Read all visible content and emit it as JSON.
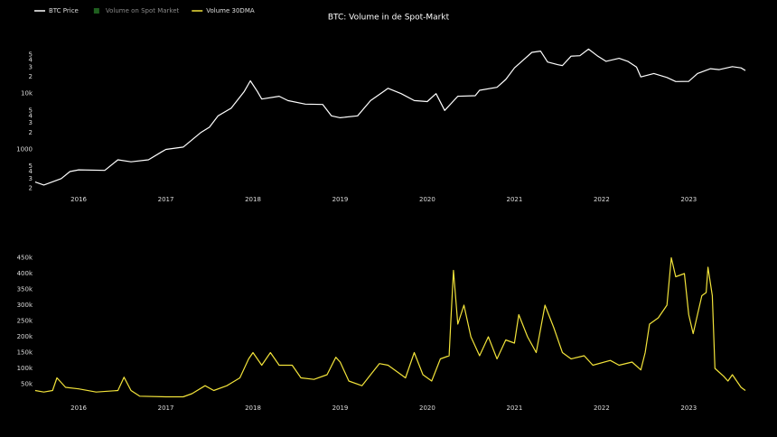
{
  "title": "BTC: Volume in de Spot-Markt",
  "legend": [
    {
      "label": "BTC Price",
      "color": "#ffffff"
    },
    {
      "label": "Volume on Spot Market",
      "color": "#1f5f1f"
    },
    {
      "label": "Volume 30DMA",
      "color": "#f2e33a"
    }
  ],
  "chart_data": [
    {
      "type": "line",
      "log_scale": true,
      "xlim": [
        2015.46,
        2023.66
      ],
      "xticks": [
        2016,
        2017,
        2018,
        2019,
        2020,
        2021,
        2022,
        2023
      ],
      "ylim": [
        190,
        100000
      ],
      "yticks": [
        {
          "value": 200,
          "label": "2"
        },
        {
          "value": 300,
          "label": "3"
        },
        {
          "value": 400,
          "label": "4"
        },
        {
          "value": 500,
          "label": "5"
        },
        1000,
        {
          "value": 2000,
          "label": "2"
        },
        {
          "value": 3000,
          "label": "3"
        },
        {
          "value": 4000,
          "label": "4"
        },
        {
          "value": 5000,
          "label": "5"
        },
        {
          "value": 10000,
          "label": "10k"
        },
        {
          "value": 20000,
          "label": "2"
        },
        {
          "value": 30000,
          "label": "3"
        },
        {
          "value": 40000,
          "label": "4"
        },
        {
          "value": 50000,
          "label": "5"
        }
      ],
      "x": [
        2015.5,
        2015.6,
        2015.8,
        2015.9,
        2016.0,
        2016.3,
        2016.45,
        2016.6,
        2016.8,
        2016.95,
        2017.0,
        2017.2,
        2017.4,
        2017.5,
        2017.6,
        2017.75,
        2017.9,
        2017.97,
        2018.05,
        2018.1,
        2018.3,
        2018.4,
        2018.6,
        2018.8,
        2018.9,
        2019.0,
        2019.2,
        2019.35,
        2019.5,
        2019.55,
        2019.7,
        2019.85,
        2020.0,
        2020.1,
        2020.2,
        2020.35,
        2020.55,
        2020.6,
        2020.8,
        2020.9,
        2021.0,
        2021.1,
        2021.2,
        2021.3,
        2021.38,
        2021.5,
        2021.55,
        2021.65,
        2021.75,
        2021.85,
        2021.95,
        2022.05,
        2022.2,
        2022.3,
        2022.4,
        2022.45,
        2022.6,
        2022.75,
        2022.85,
        2023.0,
        2023.1,
        2023.25,
        2023.35,
        2023.5,
        2023.6,
        2023.65
      ],
      "series": [
        {
          "name": "BTC Price",
          "color": "#ffffff",
          "values": [
            260,
            230,
            300,
            400,
            430,
            420,
            650,
            600,
            650,
            900,
            1000,
            1100,
            2000,
            2500,
            4000,
            5500,
            11000,
            17000,
            11000,
            8000,
            9000,
            7500,
            6500,
            6400,
            4000,
            3700,
            4000,
            7500,
            11000,
            12500,
            10000,
            7500,
            7200,
            10000,
            5000,
            9000,
            9200,
            11500,
            13000,
            18000,
            29000,
            40000,
            55000,
            58000,
            37000,
            33000,
            32000,
            47000,
            48000,
            63000,
            48000,
            38000,
            43000,
            38000,
            30000,
            20000,
            23000,
            19500,
            16500,
            16600,
            23000,
            28000,
            27000,
            30500,
            29000,
            26000
          ]
        }
      ]
    },
    {
      "type": "line",
      "log_scale": false,
      "xlim": [
        2015.46,
        2023.66
      ],
      "xticks": [
        2016,
        2017,
        2018,
        2019,
        2020,
        2021,
        2022,
        2023
      ],
      "ylim": [
        0,
        457000
      ],
      "yticks": [
        {
          "value": 50000,
          "label": "50k"
        },
        {
          "value": 100000,
          "label": "100k"
        },
        {
          "value": 150000,
          "label": "150k"
        },
        {
          "value": 200000,
          "label": "200k"
        },
        {
          "value": 250000,
          "label": "250k"
        },
        {
          "value": 300000,
          "label": "300k"
        },
        {
          "value": 350000,
          "label": "350k"
        },
        {
          "value": 400000,
          "label": "400k"
        },
        {
          "value": 450000,
          "label": "450k"
        }
      ],
      "x": [
        2015.5,
        2015.6,
        2015.7,
        2015.75,
        2015.85,
        2016.0,
        2016.2,
        2016.45,
        2016.52,
        2016.6,
        2016.7,
        2017.0,
        2017.2,
        2017.3,
        2017.45,
        2017.55,
        2017.7,
        2017.85,
        2017.95,
        2018.0,
        2018.1,
        2018.2,
        2018.3,
        2018.45,
        2018.55,
        2018.7,
        2018.85,
        2018.95,
        2019.0,
        2019.1,
        2019.25,
        2019.35,
        2019.45,
        2019.55,
        2019.65,
        2019.75,
        2019.85,
        2019.95,
        2020.05,
        2020.15,
        2020.25,
        2020.27,
        2020.3,
        2020.35,
        2020.42,
        2020.5,
        2020.6,
        2020.7,
        2020.8,
        2020.9,
        2021.0,
        2021.05,
        2021.15,
        2021.25,
        2021.35,
        2021.45,
        2021.55,
        2021.65,
        2021.8,
        2021.9,
        2022.1,
        2022.2,
        2022.35,
        2022.45,
        2022.5,
        2022.55,
        2022.65,
        2022.75,
        2022.8,
        2022.85,
        2022.95,
        2023.0,
        2023.05,
        2023.15,
        2023.2,
        2023.22,
        2023.27,
        2023.3,
        2023.4,
        2023.45,
        2023.5,
        2023.6,
        2023.65
      ],
      "series": [
        {
          "name": "Volume 30DMA",
          "color": "#f2e33a",
          "values": [
            30000,
            25000,
            30000,
            70000,
            40000,
            35000,
            25000,
            30000,
            72000,
            30000,
            12000,
            10000,
            10000,
            20000,
            45000,
            30000,
            45000,
            70000,
            130000,
            150000,
            110000,
            150000,
            110000,
            110000,
            70000,
            65000,
            80000,
            135000,
            120000,
            60000,
            45000,
            80000,
            115000,
            110000,
            90000,
            70000,
            150000,
            80000,
            60000,
            130000,
            140000,
            250000,
            410000,
            240000,
            300000,
            200000,
            140000,
            200000,
            130000,
            190000,
            180000,
            270000,
            200000,
            150000,
            300000,
            230000,
            150000,
            130000,
            140000,
            110000,
            125000,
            110000,
            120000,
            95000,
            150000,
            240000,
            260000,
            300000,
            450000,
            390000,
            400000,
            270000,
            210000,
            330000,
            340000,
            420000,
            330000,
            100000,
            75000,
            60000,
            80000,
            40000,
            30000
          ]
        }
      ]
    }
  ]
}
